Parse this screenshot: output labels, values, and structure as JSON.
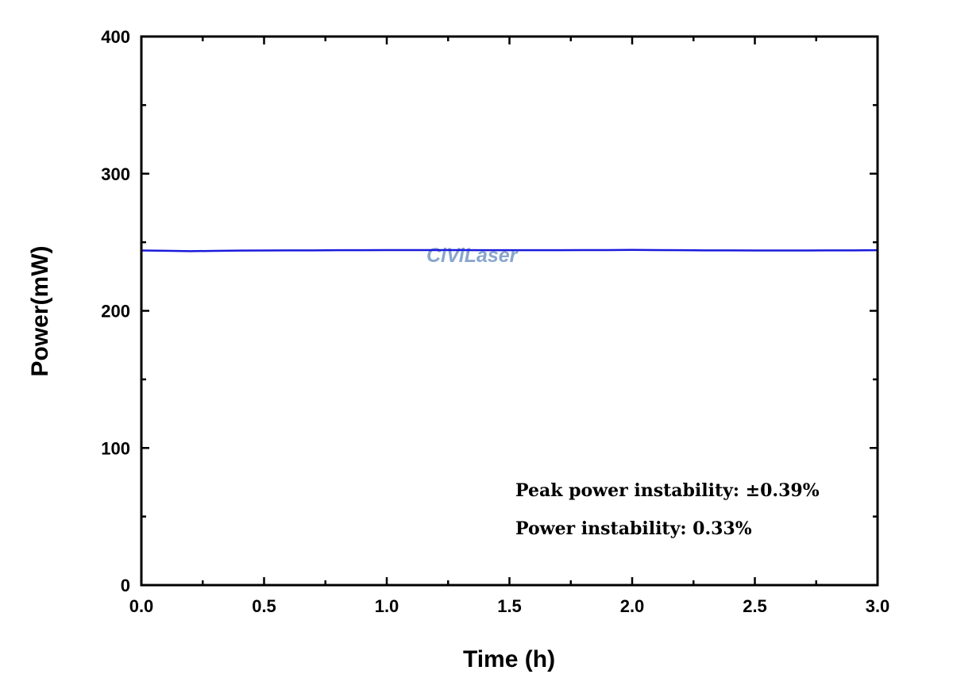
{
  "chart_data": {
    "type": "line",
    "title": "",
    "xlabel": "Time (h)",
    "ylabel": "Power(mW)",
    "xlim": [
      0,
      3.0
    ],
    "ylim": [
      0,
      400
    ],
    "xticks": [
      "0.0",
      "0.5",
      "1.0",
      "1.5",
      "2.0",
      "2.5",
      "3.0"
    ],
    "yticks": [
      "0",
      "100",
      "200",
      "300",
      "400"
    ],
    "grid": false,
    "series": [
      {
        "name": "Power",
        "color": "#1a1adc",
        "x": [
          0,
          0.1,
          0.2,
          0.3,
          0.4,
          0.5,
          0.6,
          0.7,
          0.8,
          0.9,
          1.0,
          1.1,
          1.2,
          1.3,
          1.4,
          1.5,
          1.6,
          1.7,
          1.8,
          1.9,
          2.0,
          2.1,
          2.2,
          2.3,
          2.4,
          2.5,
          2.6,
          2.7,
          2.8,
          2.9,
          3.0
        ],
        "y": [
          244.0,
          243.8,
          243.5,
          243.7,
          243.9,
          244.0,
          244.1,
          244.1,
          244.2,
          244.2,
          244.3,
          244.3,
          244.3,
          244.3,
          244.2,
          244.2,
          244.2,
          244.2,
          244.3,
          244.3,
          244.4,
          244.3,
          244.2,
          244.1,
          244.1,
          244.0,
          244.0,
          244.0,
          244.1,
          244.1,
          244.2
        ]
      }
    ],
    "annotations": [
      "Peak power instability: ±0.39%",
      "Power instability: 0.33%"
    ],
    "watermark": "CiViLaser"
  }
}
